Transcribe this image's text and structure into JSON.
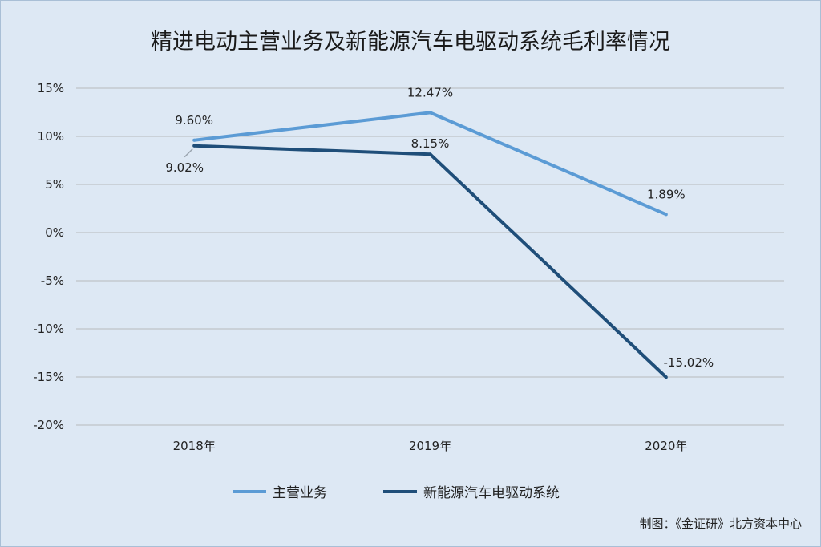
{
  "chart_data": {
    "type": "line",
    "title": "精进电动主营业务及新能源汽车电驱动系统毛利率情况",
    "categories": [
      "2018年",
      "2019年",
      "2020年"
    ],
    "series": [
      {
        "name": "主营业务",
        "values": [
          9.6,
          12.47,
          1.89
        ],
        "labels": [
          "9.60%",
          "12.47%",
          "1.89%"
        ],
        "color": "#5b9bd5"
      },
      {
        "name": "新能源汽车电驱动系统",
        "values": [
          9.02,
          8.15,
          -15.02
        ],
        "labels": [
          "9.02%",
          "8.15%",
          "-15.02%"
        ],
        "color": "#1f4e79"
      }
    ],
    "ylim": [
      -20,
      15
    ],
    "yticks": [
      15,
      10,
      5,
      0,
      -5,
      -10,
      -15,
      -20
    ],
    "ytick_labels": [
      "15%",
      "10%",
      "5%",
      "0%",
      "-5%",
      "-10%",
      "-15%",
      "-20%"
    ],
    "grid": true,
    "legend": "bottom"
  },
  "credit": "制图：《金证研》北方资本中心"
}
